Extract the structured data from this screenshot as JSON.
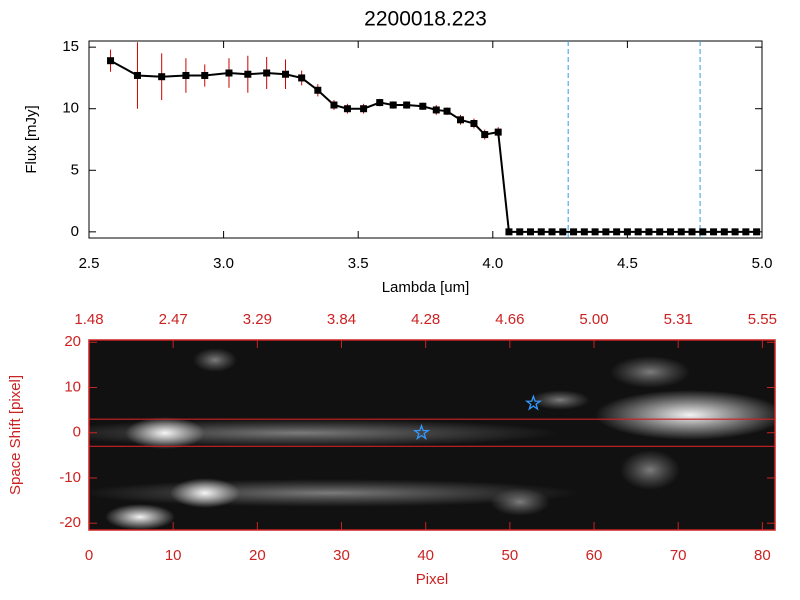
{
  "chart_data": [
    {
      "type": "line",
      "title": "2200018.223",
      "x_label": "Lambda [um]",
      "y_label": "Flux [mJy]",
      "x": [
        2.58,
        2.68,
        2.77,
        2.86,
        2.93,
        3.02,
        3.09,
        3.16,
        3.23,
        3.29,
        3.35,
        3.41,
        3.46,
        3.52,
        3.58,
        3.63,
        3.68,
        3.74,
        3.79,
        3.83,
        3.88,
        3.93,
        3.97,
        4.02,
        4.06,
        4.1,
        4.14,
        4.18,
        4.22,
        4.26,
        4.3,
        4.34,
        4.38,
        4.42,
        4.46,
        4.5,
        4.54,
        4.58,
        4.62,
        4.66,
        4.7,
        4.74,
        4.78,
        4.82,
        4.86,
        4.9,
        4.94,
        4.98
      ],
      "values": [
        13.9,
        12.7,
        12.6,
        12.7,
        12.7,
        12.9,
        12.8,
        12.9,
        12.8,
        12.5,
        11.5,
        10.3,
        10.0,
        10.0,
        10.5,
        10.3,
        10.3,
        10.2,
        9.9,
        9.8,
        9.1,
        8.8,
        7.9,
        8.1,
        0,
        0,
        0,
        0,
        0,
        0,
        0,
        0,
        0,
        0,
        0,
        0,
        0,
        0,
        0,
        0,
        0,
        0,
        0,
        0,
        0,
        0,
        0,
        0
      ],
      "errors": [
        0.9,
        2.7,
        1.9,
        1.4,
        0.9,
        1.2,
        1.5,
        1.3,
        1.2,
        0.6,
        0.5,
        0.4,
        0.4,
        0.4,
        0.3,
        0.3,
        0.3,
        0.3,
        0.4,
        0.3,
        0.4,
        0.4,
        0.4,
        0.4,
        0,
        0,
        0,
        0,
        0,
        0,
        0,
        0,
        0,
        0,
        0,
        0,
        0,
        0,
        0,
        0,
        0,
        0,
        0,
        0,
        0,
        0,
        0,
        0
      ],
      "color": "#000000",
      "error_color": "#cc0000",
      "xlim": [
        2.5,
        5.0
      ],
      "ylim": [
        -0.5,
        15.5
      ],
      "xticks": [
        2.5,
        {
          "value": 3,
          "label": "3.0"
        },
        3.5,
        {
          "value": 4,
          "label": "4.0"
        },
        4.5,
        {
          "value": 5,
          "label": "5.0"
        }
      ],
      "yticks": [
        0,
        5,
        10,
        15
      ],
      "vlines": [
        4.28,
        4.77
      ],
      "vline_color": "#3399dd"
    },
    {
      "type": "image",
      "x_label": "Pixel",
      "y_label": "Space Shift [pixel]",
      "xlim": [
        0,
        81.5
      ],
      "ylim": [
        -21.5,
        20.5
      ],
      "xticks": [
        0,
        10,
        20,
        30,
        40,
        50,
        60,
        70,
        80
      ],
      "yticks": [
        -20,
        -10,
        0,
        10,
        20
      ],
      "top_ticks": [
        {
          "value": 0,
          "label": "1.48"
        },
        {
          "value": 10,
          "label": "2.47"
        },
        {
          "value": 20,
          "label": "3.29"
        },
        {
          "value": 30,
          "label": "3.84"
        },
        {
          "value": 40,
          "label": "4.28"
        },
        {
          "value": 50,
          "label": "4.66"
        },
        {
          "value": 60,
          "label": "5.00"
        },
        {
          "value": 70,
          "label": "5.31"
        },
        {
          "value": 80,
          "label": "5.55"
        }
      ],
      "hlines": [
        3,
        -3
      ],
      "hline_color": "#cc2222",
      "markers": {
        "x": [
          39.5,
          52.8
        ],
        "y": [
          0,
          6.5
        ],
        "color": "#3399ff"
      },
      "axis_color": "#cc2222"
    }
  ]
}
